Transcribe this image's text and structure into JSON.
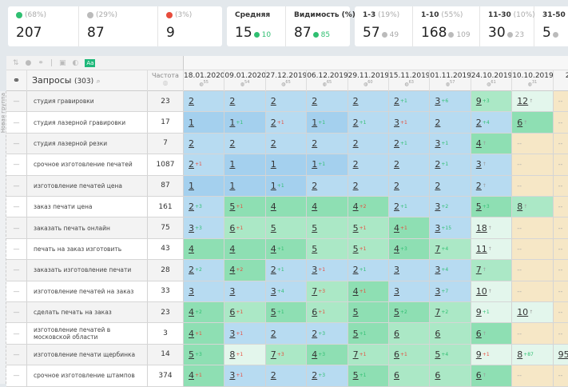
{
  "summary": {
    "up": {
      "pct": "(68%)",
      "value": "207"
    },
    "same": {
      "pct": "(29%)",
      "value": "87"
    },
    "down": {
      "pct": "(3%)",
      "value": "9"
    },
    "avg": {
      "label": "Средняя",
      "value": "15",
      "delta": "10"
    },
    "visibility": {
      "label": "Видимость (%)",
      "value": "87",
      "delta": "85"
    },
    "ranges": [
      {
        "label": "1-3",
        "pct": "(19%)",
        "value": "57",
        "prev": "49"
      },
      {
        "label": "1-10",
        "pct": "(55%)",
        "value": "168",
        "prev": "109"
      },
      {
        "label": "11-30",
        "pct": "(10%)",
        "value": "30",
        "prev": "23"
      },
      {
        "label": "31-50",
        "pct": "",
        "value": "5",
        "prev": ""
      }
    ]
  },
  "colors": {
    "b": "#b7dbf1",
    "d": "#a4d0ee",
    "g": "#8edfb3",
    "l": "#abe8c6",
    "v": "#e3f6ec",
    "y": "#f6e7c6"
  },
  "header": {
    "queries_label": "Запросы",
    "queries_count": "(303)",
    "freq_label": "Частота",
    "group_label": "Новая группа"
  },
  "dates": [
    {
      "date": "18.01.2020",
      "n": "55"
    },
    {
      "date": "09.01.2020",
      "n": "54"
    },
    {
      "date": "27.12.2019",
      "n": "65"
    },
    {
      "date": "06.12.2019",
      "n": "65"
    },
    {
      "date": "29.11.2019",
      "n": "60"
    },
    {
      "date": "15.11.2019",
      "n": "63"
    },
    {
      "date": "01.11.2019",
      "n": "57"
    },
    {
      "date": "24.10.2019",
      "n": "61"
    },
    {
      "date": "10.10.2019",
      "n": "31"
    },
    {
      "date": "26.0",
      "n": ""
    }
  ],
  "rows": [
    {
      "q": "студия гравировки",
      "f": "23",
      "cells": [
        [
          "2",
          "",
          "",
          "b"
        ],
        [
          "2",
          "",
          "",
          "b"
        ],
        [
          "2",
          "",
          "",
          "b"
        ],
        [
          "2",
          "",
          "",
          "b"
        ],
        [
          "2",
          "",
          "",
          "b"
        ],
        [
          "2",
          "+1",
          "g",
          "b"
        ],
        [
          "3",
          "+6",
          "g",
          "b"
        ],
        [
          "9",
          "+3",
          "g",
          "l"
        ],
        [
          "12",
          "↑",
          "a",
          "v"
        ],
        [
          "--",
          "",
          "",
          "y"
        ]
      ]
    },
    {
      "q": "студия лазерной гравировки",
      "f": "17",
      "cells": [
        [
          "1",
          "",
          "",
          "d"
        ],
        [
          "1",
          "+1",
          "g",
          "d"
        ],
        [
          "2",
          "+1",
          "r",
          "b"
        ],
        [
          "1",
          "+1",
          "g",
          "d"
        ],
        [
          "2",
          "+1",
          "g",
          "b"
        ],
        [
          "3",
          "+1",
          "r",
          "b"
        ],
        [
          "2",
          "",
          "",
          "b"
        ],
        [
          "2",
          "+4",
          "g",
          "b"
        ],
        [
          "6",
          "↑",
          "a",
          "g"
        ],
        [
          "--",
          "",
          "",
          "y"
        ]
      ]
    },
    {
      "q": "студия лазерной резки",
      "f": "7",
      "cells": [
        [
          "2",
          "",
          "",
          "b"
        ],
        [
          "2",
          "",
          "",
          "b"
        ],
        [
          "2",
          "",
          "",
          "b"
        ],
        [
          "2",
          "",
          "",
          "b"
        ],
        [
          "2",
          "",
          "",
          "b"
        ],
        [
          "2",
          "+1",
          "g",
          "b"
        ],
        [
          "3",
          "+1",
          "g",
          "b"
        ],
        [
          "4",
          "↑",
          "a",
          "g"
        ],
        [
          "--",
          "",
          "",
          "y"
        ],
        [
          "--",
          "",
          "",
          "y"
        ]
      ]
    },
    {
      "q": "срочное изготовление печатей",
      "f": "1087",
      "cells": [
        [
          "2",
          "+1",
          "r",
          "b"
        ],
        [
          "1",
          "",
          "",
          "d"
        ],
        [
          "1",
          "",
          "",
          "d"
        ],
        [
          "1",
          "+1",
          "g",
          "d"
        ],
        [
          "2",
          "",
          "",
          "b"
        ],
        [
          "2",
          "",
          "",
          "b"
        ],
        [
          "2",
          "+1",
          "g",
          "b"
        ],
        [
          "3",
          "↑",
          "a",
          "b"
        ],
        [
          "--",
          "",
          "",
          "y"
        ],
        [
          "--",
          "",
          "",
          "y"
        ]
      ]
    },
    {
      "q": "изготовление печатей цена",
      "f": "87",
      "cells": [
        [
          "1",
          "",
          "",
          "d"
        ],
        [
          "1",
          "",
          "",
          "d"
        ],
        [
          "1",
          "+1",
          "g",
          "d"
        ],
        [
          "2",
          "",
          "",
          "b"
        ],
        [
          "2",
          "",
          "",
          "b"
        ],
        [
          "2",
          "",
          "",
          "b"
        ],
        [
          "2",
          "",
          "",
          "b"
        ],
        [
          "2",
          "↑",
          "a",
          "b"
        ],
        [
          "--",
          "",
          "",
          "y"
        ],
        [
          "--",
          "",
          "",
          "y"
        ]
      ]
    },
    {
      "q": "заказ печати цена",
      "f": "161",
      "cells": [
        [
          "2",
          "+3",
          "g",
          "b"
        ],
        [
          "5",
          "+1",
          "r",
          "g"
        ],
        [
          "4",
          "",
          "",
          "g"
        ],
        [
          "4",
          "",
          "",
          "g"
        ],
        [
          "4",
          "+2",
          "r",
          "g"
        ],
        [
          "2",
          "+1",
          "g",
          "b"
        ],
        [
          "3",
          "+2",
          "g",
          "b"
        ],
        [
          "5",
          "+3",
          "g",
          "g"
        ],
        [
          "8",
          "↑",
          "a",
          "l"
        ],
        [
          "--",
          "",
          "",
          "y"
        ]
      ]
    },
    {
      "q": "заказать печать онлайн",
      "f": "75",
      "cells": [
        [
          "3",
          "+3",
          "g",
          "b"
        ],
        [
          "6",
          "+1",
          "r",
          "l"
        ],
        [
          "5",
          "",
          "",
          "l"
        ],
        [
          "5",
          "",
          "",
          "l"
        ],
        [
          "5",
          "+1",
          "r",
          "l"
        ],
        [
          "4",
          "+1",
          "r",
          "g"
        ],
        [
          "3",
          "+15",
          "g",
          "b"
        ],
        [
          "18",
          "↑",
          "a",
          "v"
        ],
        [
          "--",
          "",
          "",
          "y"
        ],
        [
          "--",
          "",
          "",
          "y"
        ]
      ]
    },
    {
      "q": "печать на заказ изготовить",
      "f": "43",
      "cells": [
        [
          "4",
          "",
          "",
          "g"
        ],
        [
          "4",
          "",
          "",
          "g"
        ],
        [
          "4",
          "+1",
          "g",
          "g"
        ],
        [
          "5",
          "",
          "",
          "l"
        ],
        [
          "5",
          "+1",
          "r",
          "l"
        ],
        [
          "4",
          "+3",
          "g",
          "g"
        ],
        [
          "7",
          "+4",
          "g",
          "l"
        ],
        [
          "11",
          "↑",
          "a",
          "v"
        ],
        [
          "--",
          "",
          "",
          "y"
        ],
        [
          "--",
          "",
          "",
          "y"
        ]
      ]
    },
    {
      "q": "заказать изготовление печати",
      "f": "28",
      "cells": [
        [
          "2",
          "+2",
          "g",
          "b"
        ],
        [
          "4",
          "+2",
          "r",
          "g"
        ],
        [
          "2",
          "+1",
          "g",
          "b"
        ],
        [
          "3",
          "+1",
          "r",
          "b"
        ],
        [
          "2",
          "+1",
          "g",
          "b"
        ],
        [
          "3",
          "",
          "",
          "b"
        ],
        [
          "3",
          "+4",
          "g",
          "b"
        ],
        [
          "7",
          "↑",
          "a",
          "l"
        ],
        [
          "--",
          "",
          "",
          "y"
        ],
        [
          "--",
          "",
          "",
          "y"
        ]
      ]
    },
    {
      "q": "изготовление печатей на заказ",
      "f": "33",
      "cells": [
        [
          "3",
          "",
          "",
          "b"
        ],
        [
          "3",
          "",
          "",
          "b"
        ],
        [
          "3",
          "+4",
          "g",
          "b"
        ],
        [
          "7",
          "+3",
          "r",
          "l"
        ],
        [
          "4",
          "+1",
          "r",
          "g"
        ],
        [
          "3",
          "",
          "",
          "b"
        ],
        [
          "3",
          "+7",
          "g",
          "b"
        ],
        [
          "10",
          "↑",
          "a",
          "v"
        ],
        [
          "--",
          "",
          "",
          "y"
        ],
        [
          "--",
          "",
          "",
          "y"
        ]
      ]
    },
    {
      "q": "сделать печать на заказ",
      "f": "23",
      "cells": [
        [
          "4",
          "+2",
          "g",
          "g"
        ],
        [
          "6",
          "+1",
          "r",
          "l"
        ],
        [
          "5",
          "+1",
          "g",
          "g"
        ],
        [
          "6",
          "+1",
          "r",
          "l"
        ],
        [
          "5",
          "",
          "",
          "g"
        ],
        [
          "5",
          "+2",
          "g",
          "g"
        ],
        [
          "7",
          "+2",
          "g",
          "l"
        ],
        [
          "9",
          "+1",
          "g",
          "v"
        ],
        [
          "10",
          "↑",
          "a",
          "v"
        ],
        [
          "--",
          "",
          "",
          "y"
        ]
      ]
    },
    {
      "q": "изготовление печатей в московской области",
      "f": "3",
      "cells": [
        [
          "4",
          "+1",
          "r",
          "g"
        ],
        [
          "3",
          "+1",
          "r",
          "b"
        ],
        [
          "2",
          "",
          "",
          "b"
        ],
        [
          "2",
          "+3",
          "g",
          "b"
        ],
        [
          "5",
          "+1",
          "g",
          "g"
        ],
        [
          "6",
          "",
          "",
          "l"
        ],
        [
          "6",
          "",
          "",
          "l"
        ],
        [
          "6",
          "↑",
          "a",
          "g"
        ],
        [
          "--",
          "",
          "",
          "y"
        ],
        [
          "--",
          "",
          "",
          "y"
        ]
      ]
    },
    {
      "q": "изготовление печати щербинка",
      "f": "14",
      "cells": [
        [
          "5",
          "+3",
          "g",
          "g"
        ],
        [
          "8",
          "+1",
          "r",
          "v"
        ],
        [
          "7",
          "+3",
          "r",
          "l"
        ],
        [
          "4",
          "+3",
          "g",
          "g"
        ],
        [
          "7",
          "+1",
          "r",
          "l"
        ],
        [
          "6",
          "+1",
          "r",
          "l"
        ],
        [
          "5",
          "+4",
          "g",
          "l"
        ],
        [
          "9",
          "+1",
          "r",
          "v"
        ],
        [
          "8",
          "+87",
          "g",
          "v"
        ],
        [
          "95",
          "",
          "",
          "v"
        ]
      ]
    },
    {
      "q": "срочное изготовление штампов",
      "f": "374",
      "cells": [
        [
          "4",
          "+1",
          "r",
          "g"
        ],
        [
          "3",
          "+1",
          "r",
          "b"
        ],
        [
          "2",
          "",
          "",
          "b"
        ],
        [
          "2",
          "+3",
          "g",
          "b"
        ],
        [
          "5",
          "+1",
          "g",
          "g"
        ],
        [
          "6",
          "",
          "",
          "l"
        ],
        [
          "6",
          "",
          "",
          "l"
        ],
        [
          "6",
          "↑",
          "a",
          "g"
        ],
        [
          "--",
          "",
          "",
          "y"
        ],
        [
          "--",
          "",
          "",
          "y"
        ]
      ]
    }
  ]
}
